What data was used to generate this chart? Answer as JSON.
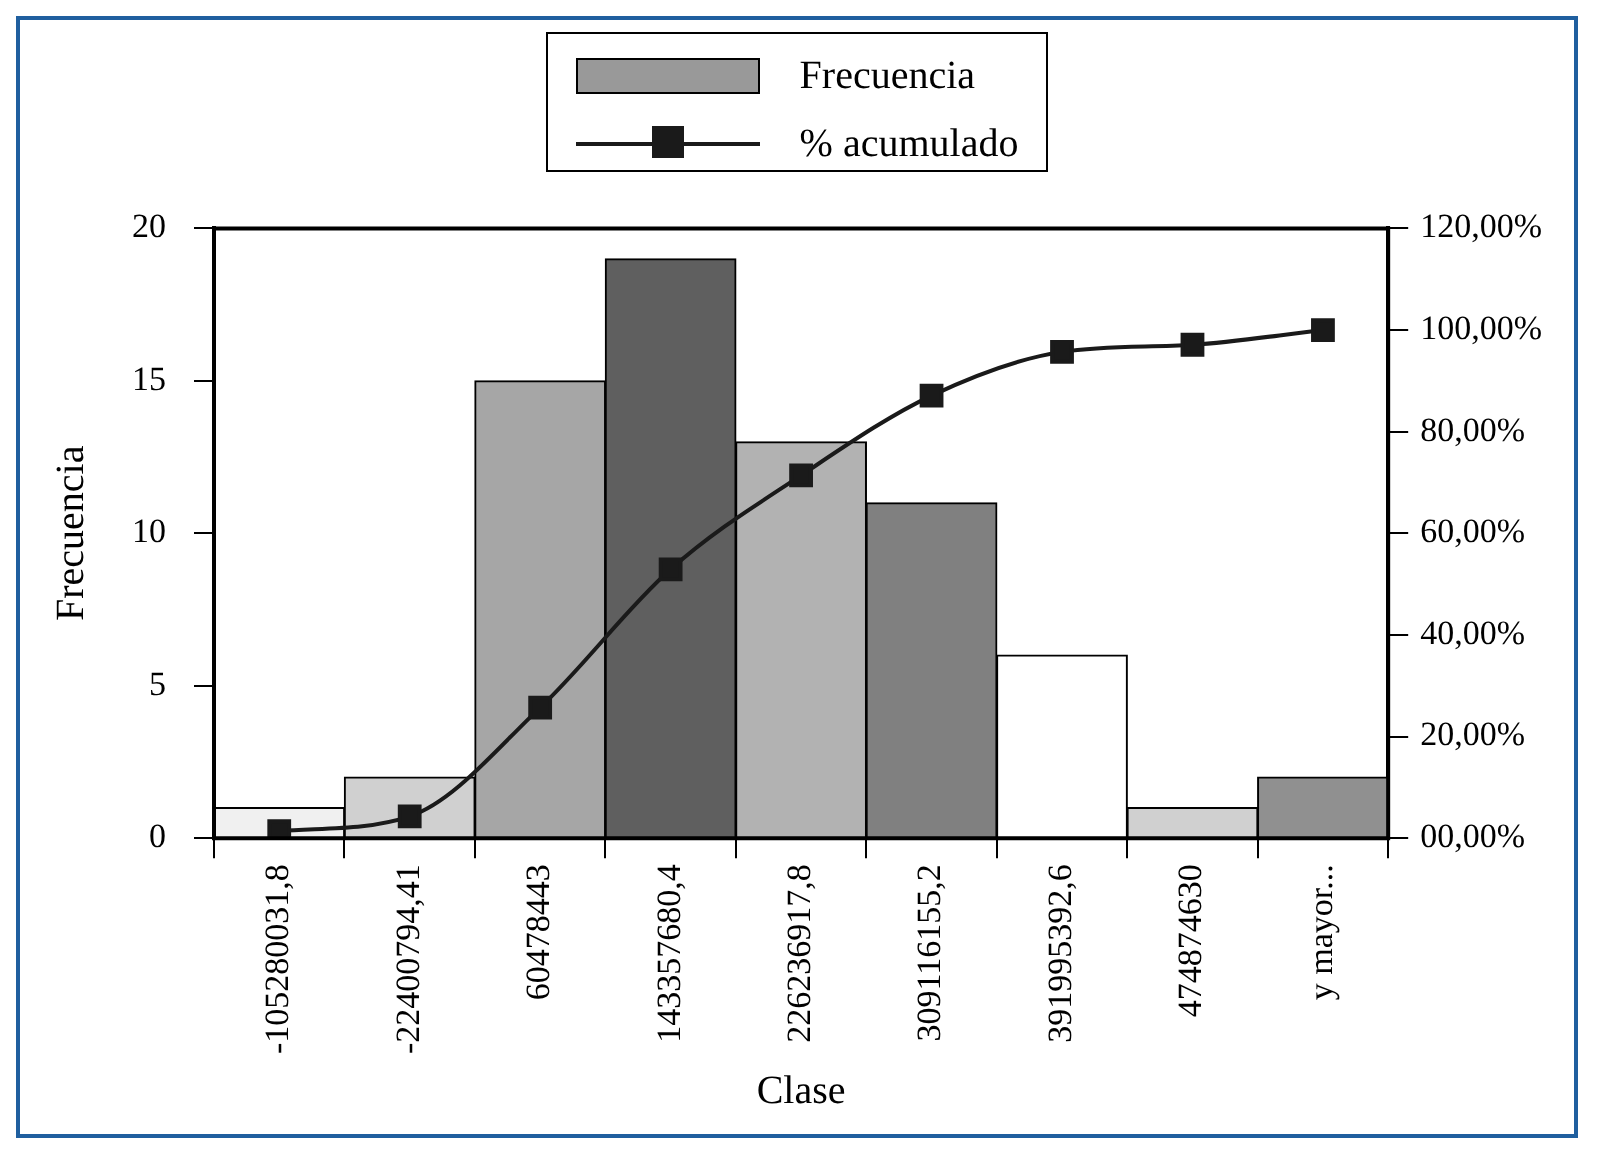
{
  "chart_data": {
    "type": "bar",
    "xlabel": "Clase",
    "ylabel": "Frecuencia",
    "categories": [
      "-105280031,8",
      "-22400794,41",
      "60478443",
      "143357680,4",
      "226236917,8",
      "309116155,2",
      "391995392,6",
      "474874630",
      "y mayor..."
    ],
    "series": [
      {
        "name": "Frecuencia",
        "color": "#999999",
        "colors": [
          "#f0f0f0",
          "#d0d0d0",
          "#a6a6a6",
          "#5f5f5f",
          "#b2b2b2",
          "#808080",
          "#ffffff",
          "#d0d0d0",
          "#909090"
        ],
        "values": [
          1,
          2,
          15,
          19,
          13,
          11,
          6,
          1,
          2
        ]
      },
      {
        "name": "% acumulado",
        "type": "line",
        "axis": "y2",
        "color": "#1a1a1a",
        "values": [
          1.4,
          4.3,
          25.7,
          52.9,
          71.4,
          87.1,
          95.7,
          97.1,
          100
        ]
      }
    ],
    "ylim": [
      0,
      20
    ],
    "yticks": [
      0,
      5,
      10,
      15,
      20
    ],
    "y2lim": [
      0,
      120
    ],
    "y2ticks": [
      {
        "value": 0,
        "label": "00,00%"
      },
      {
        "value": 20,
        "label": "20,00%"
      },
      {
        "value": 40,
        "label": "40,00%"
      },
      {
        "value": 60,
        "label": "60,00%"
      },
      {
        "value": 80,
        "label": "80,00%"
      },
      {
        "value": 100,
        "label": "100,00%"
      },
      {
        "value": 120,
        "label": "120,00%"
      }
    ],
    "grid": false,
    "legend": "top",
    "marker": "square"
  }
}
